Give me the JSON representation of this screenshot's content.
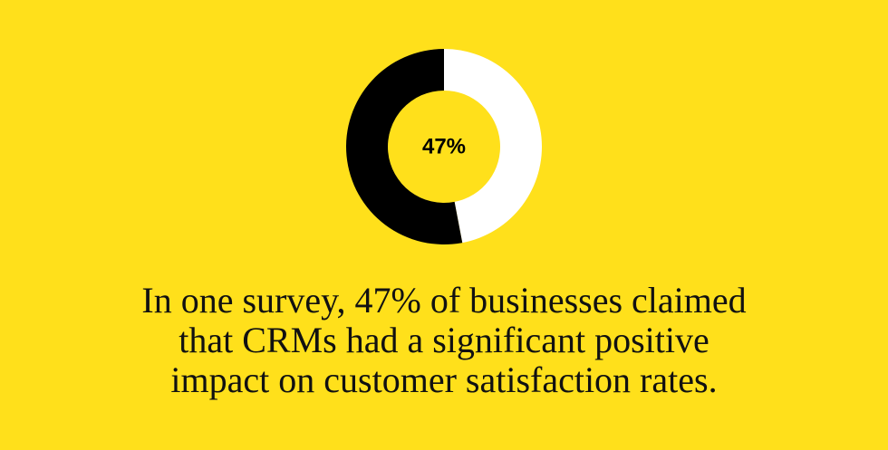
{
  "chart_data": {
    "type": "pie",
    "variant": "donut",
    "slices": [
      {
        "label": "",
        "value": 47,
        "color": "#FFFFFF"
      },
      {
        "label": "",
        "value": 53,
        "color": "#000000"
      }
    ],
    "center_label": "47%",
    "background_color": "#FFE01B"
  },
  "caption": {
    "lines": [
      "In one survey, 47% of businesses claimed",
      "that CRMs had a significant positive",
      "impact on customer satisfaction rates."
    ]
  },
  "colors": {
    "background": "#FFE01B",
    "text": "#111111"
  }
}
